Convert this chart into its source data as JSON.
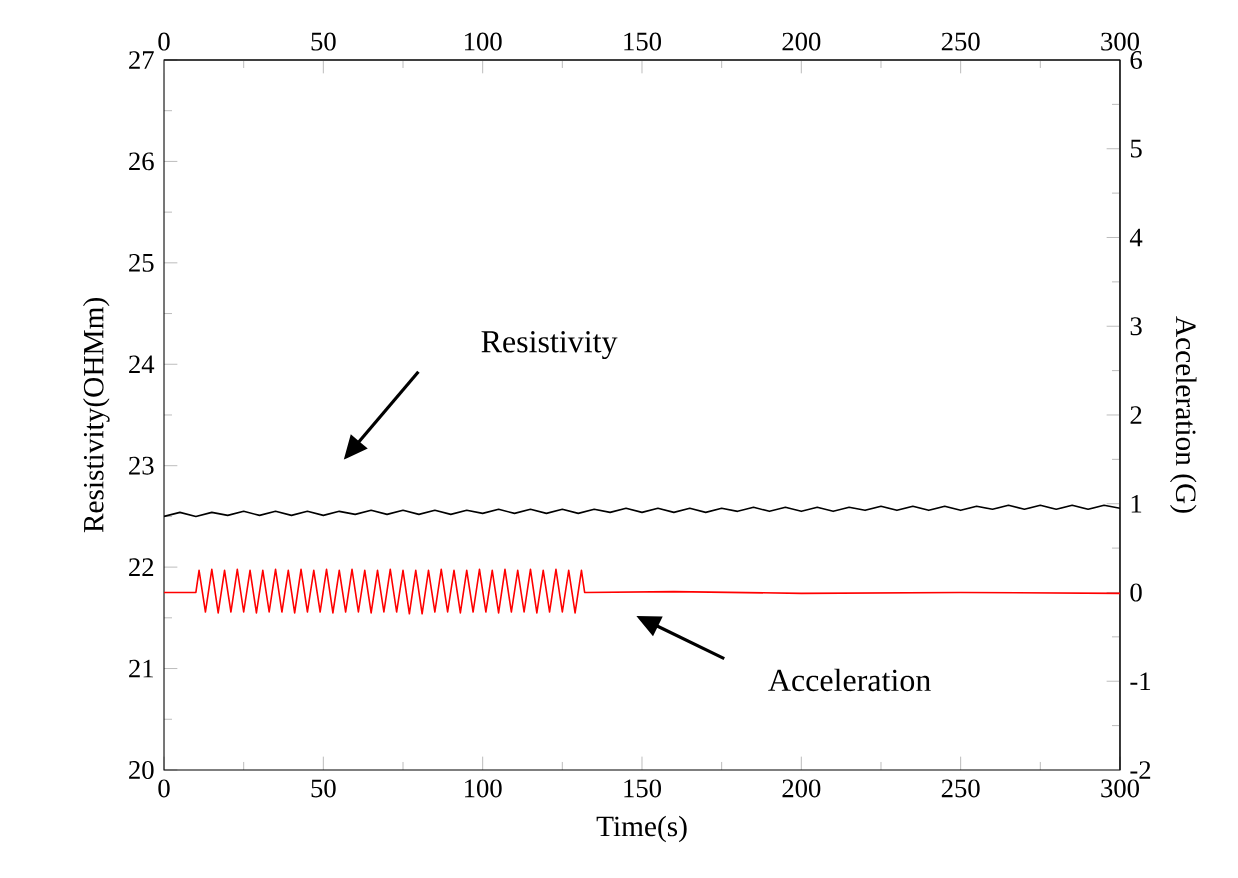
{
  "chart_data": {
    "type": "line",
    "xlabel": "Time(s)",
    "ylabel": "Resistivity(OHMm)",
    "y2label": "Acceleration (G)",
    "xlim": [
      0,
      300
    ],
    "xticks": [
      0,
      50,
      100,
      150,
      200,
      250,
      300
    ],
    "x2lim": [
      0,
      300
    ],
    "x2ticks": [
      0,
      50,
      100,
      150,
      200,
      250,
      300
    ],
    "ylim": [
      20,
      27
    ],
    "yticks": [
      20,
      21,
      22,
      23,
      24,
      25,
      26,
      27
    ],
    "y2lim": [
      -2,
      6
    ],
    "y2ticks": [
      -2,
      -1,
      0,
      1,
      2,
      3,
      4,
      5,
      6
    ],
    "series": [
      {
        "color": "#000000",
        "x": [
          0,
          5,
          10,
          15,
          20,
          25,
          30,
          35,
          40,
          45,
          50,
          55,
          60,
          65,
          70,
          75,
          80,
          85,
          90,
          95,
          100,
          105,
          110,
          115,
          120,
          125,
          130,
          135,
          140,
          145,
          150,
          155,
          160,
          165,
          170,
          175,
          180,
          185,
          190,
          195,
          200,
          205,
          210,
          215,
          220,
          225,
          230,
          235,
          240,
          245,
          250,
          255,
          260,
          265,
          270,
          275,
          280,
          285,
          290,
          295,
          300
        ],
        "values": [
          22.5,
          22.54,
          22.5,
          22.54,
          22.51,
          22.55,
          22.51,
          22.55,
          22.51,
          22.55,
          22.51,
          22.55,
          22.52,
          22.56,
          22.52,
          22.56,
          22.52,
          22.56,
          22.52,
          22.56,
          22.53,
          22.57,
          22.53,
          22.57,
          22.53,
          22.57,
          22.53,
          22.57,
          22.54,
          22.58,
          22.54,
          22.58,
          22.54,
          22.58,
          22.54,
          22.58,
          22.55,
          22.59,
          22.55,
          22.59,
          22.55,
          22.59,
          22.55,
          22.59,
          22.56,
          22.6,
          22.56,
          22.6,
          22.56,
          22.6,
          22.56,
          22.6,
          22.57,
          22.61,
          22.57,
          22.61,
          22.57,
          22.61,
          22.57,
          22.61,
          22.58
        ]
      },
      {
        "color": "#ff0000",
        "axis": "y2",
        "x": [
          0,
          10,
          11,
          13,
          15,
          17,
          19,
          21,
          23,
          25,
          27,
          29,
          31,
          33,
          35,
          37,
          39,
          41,
          43,
          45,
          47,
          49,
          51,
          53,
          55,
          57,
          59,
          61,
          63,
          65,
          67,
          69,
          71,
          73,
          75,
          77,
          79,
          81,
          83,
          85,
          87,
          89,
          91,
          93,
          95,
          97,
          99,
          101,
          103,
          105,
          107,
          109,
          111,
          113,
          115,
          117,
          119,
          121,
          123,
          125,
          127,
          129,
          131,
          132,
          160,
          200,
          250,
          300
        ],
        "values": [
          0,
          0,
          0.25,
          -0.22,
          0.26,
          -0.23,
          0.25,
          -0.22,
          0.26,
          -0.22,
          0.25,
          -0.23,
          0.25,
          -0.22,
          0.26,
          -0.22,
          0.25,
          -0.23,
          0.26,
          -0.22,
          0.25,
          -0.22,
          0.26,
          -0.23,
          0.25,
          -0.22,
          0.26,
          -0.22,
          0.25,
          -0.23,
          0.25,
          -0.22,
          0.26,
          -0.22,
          0.25,
          -0.24,
          0.25,
          -0.24,
          0.25,
          -0.22,
          0.26,
          -0.22,
          0.25,
          -0.23,
          0.25,
          -0.22,
          0.26,
          -0.22,
          0.25,
          -0.23,
          0.26,
          -0.22,
          0.25,
          -0.22,
          0.26,
          -0.23,
          0.25,
          -0.22,
          0.26,
          -0.22,
          0.25,
          -0.23,
          0.25,
          0,
          0.01,
          -0.01,
          0,
          -0.01
        ]
      }
    ],
    "annotations": [
      "Resistivity",
      "Acceleration"
    ]
  }
}
